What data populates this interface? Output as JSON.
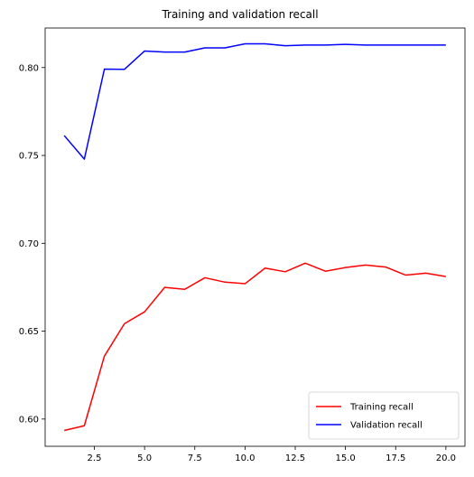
{
  "chart_data": {
    "type": "line",
    "title": "Training and validation recall",
    "xlabel": "",
    "ylabel": "",
    "xlim": [
      0.05,
      20.95
    ],
    "ylim": [
      0.5845,
      0.8225
    ],
    "xticks": [
      2.5,
      5.0,
      7.5,
      10.0,
      12.5,
      15.0,
      17.5,
      20.0
    ],
    "xtick_labels": [
      "2.5",
      "5.0",
      "7.5",
      "10.0",
      "12.5",
      "15.0",
      "17.5",
      "20.0"
    ],
    "yticks": [
      0.6,
      0.65,
      0.7,
      0.75,
      0.8
    ],
    "ytick_labels": [
      "0.60",
      "0.65",
      "0.70",
      "0.75",
      "0.80"
    ],
    "grid": false,
    "legend_position": "lower-right",
    "x": [
      1,
      2,
      3,
      4,
      5,
      6,
      7,
      8,
      9,
      10,
      11,
      12,
      13,
      14,
      15,
      16,
      17,
      18,
      19,
      20
    ],
    "series": [
      {
        "name": "Training recall",
        "color": "#ff0000",
        "values": [
          0.5935,
          0.5962,
          0.6358,
          0.6543,
          0.661,
          0.6749,
          0.6738,
          0.6804,
          0.6779,
          0.677,
          0.6859,
          0.6838,
          0.6887,
          0.6841,
          0.6862,
          0.6876,
          0.6865,
          0.6819,
          0.683,
          0.6811
        ]
      },
      {
        "name": "Validation recall",
        "color": "#0000ff",
        "values": [
          0.7613,
          0.7479,
          0.7991,
          0.799,
          0.8094,
          0.8088,
          0.8088,
          0.8112,
          0.8112,
          0.8135,
          0.8135,
          0.8124,
          0.8128,
          0.8128,
          0.8132,
          0.8128,
          0.8128,
          0.8128,
          0.8128,
          0.8128
        ]
      }
    ]
  }
}
